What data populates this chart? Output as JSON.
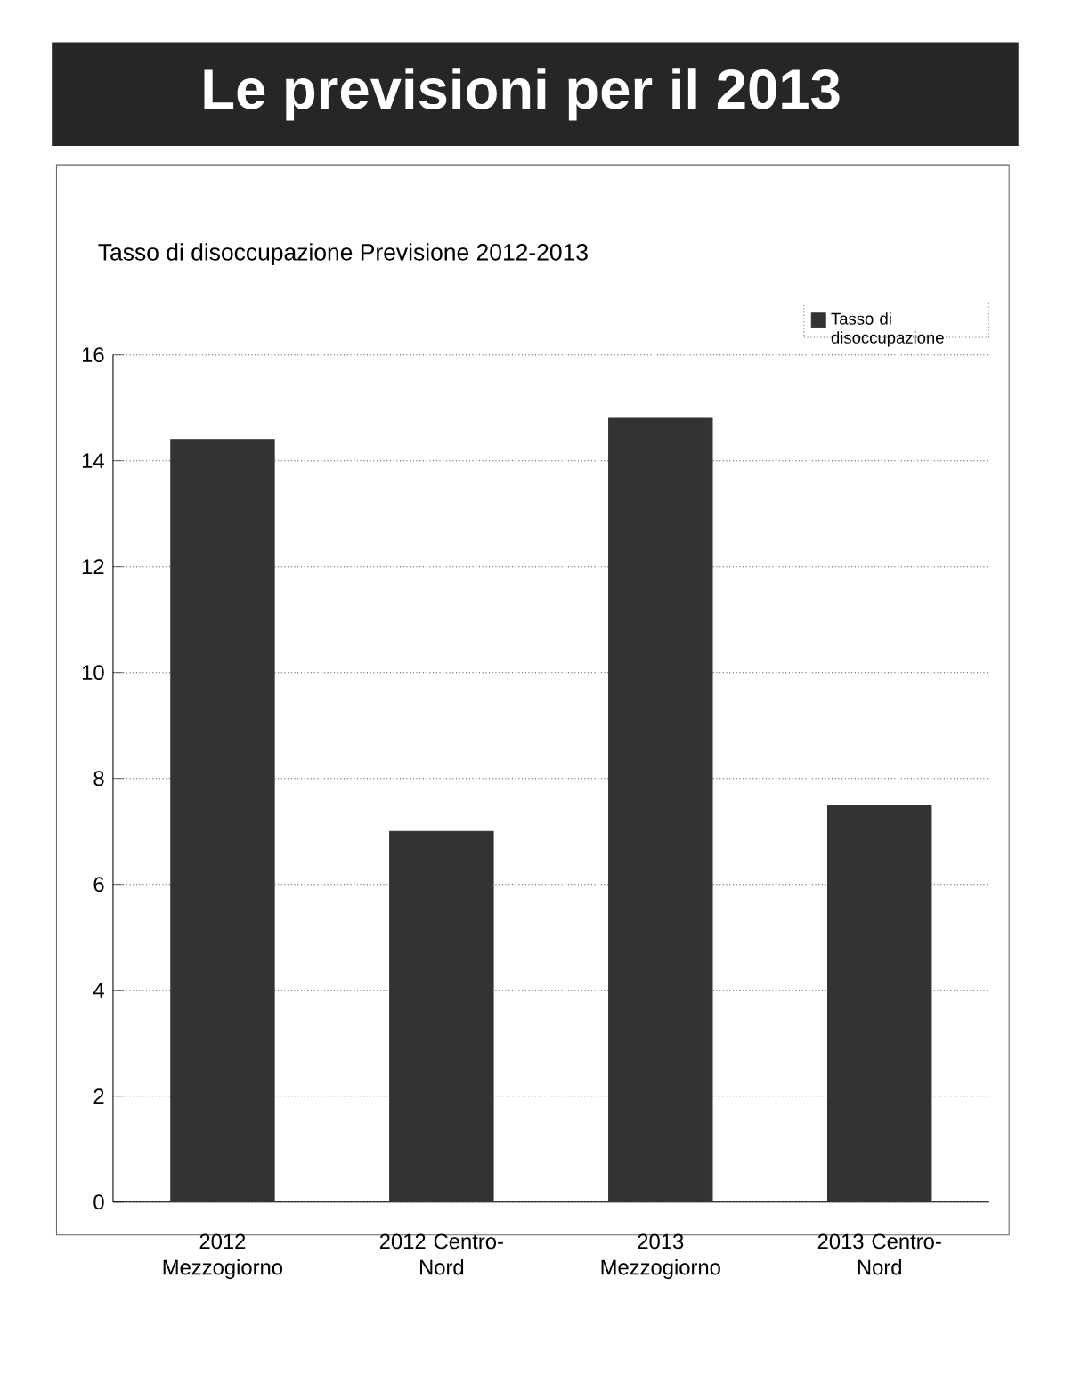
{
  "chart_data": {
    "type": "bar",
    "title": "Le previsioni per il 2013",
    "subtitle": "Tasso di disoccupazione   Previsione 2012-2013",
    "categories": [
      "2012 Mezzogiorno",
      "2012 Centro-Nord",
      "2013 Mezzogiorno",
      "2013 Centro-Nord"
    ],
    "series": [
      {
        "name": "Tasso di disoccupazione",
        "color": "#333333",
        "values": [
          14.4,
          7.0,
          14.8,
          7.5
        ]
      }
    ],
    "ylim": [
      0,
      16
    ],
    "yticks": [
      0,
      2,
      4,
      6,
      8,
      10,
      12,
      14,
      16
    ],
    "grid": "y",
    "legend": "top right"
  }
}
